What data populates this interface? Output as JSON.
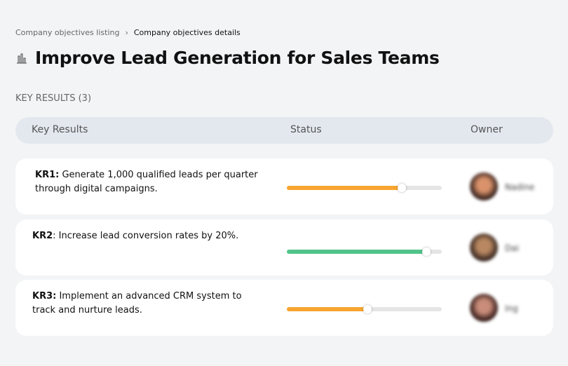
{
  "breadcrumb": {
    "parent": "Company objectives listing",
    "separator": "›",
    "current": "Company objectives details"
  },
  "title": "Improve Lead Generation for Sales Teams",
  "title_icon": "building-chart-icon",
  "section_label": "KEY RESULTS (3)",
  "columns": {
    "key_results": "Key Results",
    "status": "Status",
    "owner": "Owner"
  },
  "colors": {
    "orange": "#f7a531",
    "green": "#52c48a"
  },
  "key_results": [
    {
      "code": "KR1:",
      "text": " Generate 1,000 qualified leads per quarter through digital campaigns.",
      "progress": 74,
      "color": "#f7a531",
      "owner": "Nadine"
    },
    {
      "code": "KR2",
      "text": ": Increase lead conversion rates by 20%.",
      "progress": 90,
      "color": "#52c48a",
      "owner": "Dai"
    },
    {
      "code": "KR3:",
      "text": " Implement an advanced CRM system to track and nurture leads.",
      "progress": 52,
      "color": "#f7a531",
      "owner": "Ing"
    }
  ]
}
